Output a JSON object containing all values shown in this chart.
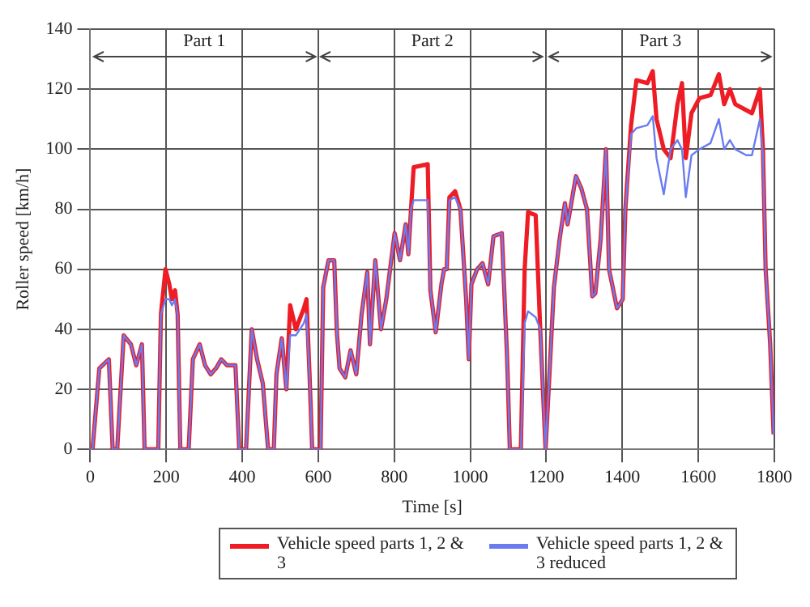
{
  "chart_data": {
    "type": "line",
    "xlabel": "Time [s]",
    "ylabel": "Roller speed [km/h]",
    "x": [
      0,
      6,
      24,
      49,
      59,
      71,
      88,
      107,
      121,
      136,
      143,
      179,
      186,
      198,
      208,
      215,
      223,
      230,
      237,
      259,
      270,
      288,
      302,
      317,
      331,
      345,
      360,
      382,
      392,
      410,
      425,
      439,
      454,
      468,
      483,
      490,
      504,
      516,
      526,
      541,
      562,
      569,
      577,
      584,
      600,
      606,
      613,
      627,
      642,
      649,
      656,
      671,
      685,
      700,
      714,
      729,
      736,
      750,
      765,
      779,
      794,
      801,
      815,
      830,
      837,
      844,
      851,
      888,
      895,
      909,
      924,
      931,
      938,
      945,
      960,
      974,
      989,
      996,
      1003,
      1018,
      1032,
      1047,
      1061,
      1083,
      1097,
      1104,
      1133,
      1143,
      1152,
      1172,
      1184,
      1198,
      1220,
      1235,
      1249,
      1256,
      1263,
      1278,
      1292,
      1307,
      1321,
      1329,
      1343,
      1357,
      1365,
      1386,
      1401,
      1408,
      1423,
      1437,
      1466,
      1480,
      1490,
      1509,
      1527,
      1545,
      1557,
      1567,
      1582,
      1603,
      1632,
      1654,
      1668,
      1683,
      1697,
      1726,
      1741,
      1762,
      1770,
      1777,
      1789,
      1798
    ],
    "series": [
      {
        "name": "Vehicle speed parts 1, 2 & 3",
        "color": "#ee1c24",
        "values": [
          0,
          0,
          27,
          30,
          0,
          0,
          38,
          35,
          28,
          35,
          0,
          0,
          45,
          60,
          55,
          50,
          53,
          45,
          0,
          0,
          30,
          35,
          28,
          25,
          27,
          30,
          28,
          28,
          0,
          0,
          40,
          30,
          22,
          0,
          0,
          25,
          37,
          20,
          48,
          40,
          47,
          50,
          25,
          0,
          0,
          0,
          54,
          63,
          63,
          39,
          27,
          24,
          33,
          25,
          45,
          59,
          35,
          63,
          40,
          50,
          65,
          72,
          63,
          75,
          65,
          80,
          94,
          95,
          53,
          39,
          55,
          60,
          60,
          84,
          86,
          80,
          50,
          30,
          55,
          60,
          62,
          55,
          71,
          72,
          30,
          0,
          0,
          60,
          79,
          78,
          40,
          0,
          54,
          70,
          82,
          75,
          80,
          91,
          87,
          80,
          51,
          52,
          70,
          100,
          60,
          47,
          50,
          80,
          108,
          123,
          122,
          126,
          110,
          100,
          97,
          115,
          122,
          97,
          112,
          117,
          118,
          125,
          115,
          120,
          115,
          113,
          112,
          120,
          100,
          60,
          35,
          5
        ]
      },
      {
        "name": "Vehicle speed parts 1, 2 & 3 reduced",
        "color": "#6a7cf0",
        "values": [
          0,
          0,
          27,
          30,
          0,
          0,
          38,
          35,
          28,
          35,
          0,
          0,
          45,
          50,
          50,
          48,
          50,
          45,
          0,
          0,
          30,
          35,
          28,
          25,
          27,
          30,
          28,
          28,
          0,
          0,
          40,
          30,
          22,
          0,
          0,
          25,
          37,
          20,
          38,
          38,
          42,
          45,
          25,
          0,
          0,
          0,
          54,
          63,
          63,
          39,
          27,
          24,
          33,
          25,
          45,
          59,
          35,
          63,
          40,
          50,
          65,
          72,
          63,
          75,
          65,
          80,
          83,
          83,
          53,
          39,
          55,
          60,
          60,
          83,
          84,
          80,
          50,
          30,
          55,
          60,
          62,
          55,
          71,
          72,
          30,
          0,
          0,
          42,
          46,
          44,
          40,
          0,
          54,
          70,
          82,
          75,
          80,
          91,
          87,
          80,
          51,
          52,
          70,
          100,
          60,
          47,
          50,
          80,
          105,
          107,
          108,
          111,
          97,
          85,
          100,
          103,
          100,
          84,
          98,
          100,
          102,
          110,
          100,
          103,
          100,
          98,
          98,
          110,
          98,
          60,
          35,
          5
        ]
      }
    ],
    "xlim": [
      0,
      1800
    ],
    "xticks": [
      0,
      200,
      400,
      600,
      800,
      1000,
      1200,
      1400,
      1600,
      1800
    ],
    "ylim": [
      0,
      140
    ],
    "yticks": [
      0,
      20,
      40,
      60,
      80,
      100,
      120,
      140
    ],
    "annotations": [
      {
        "text": "Part 1",
        "x": 300,
        "y": 136
      },
      {
        "text": "Part 2",
        "x": 900,
        "y": 136
      },
      {
        "text": "Part 3",
        "x": 1500,
        "y": 136
      }
    ],
    "grid": true,
    "legend": "bottom",
    "marker": "none",
    "line_style": "solid"
  }
}
